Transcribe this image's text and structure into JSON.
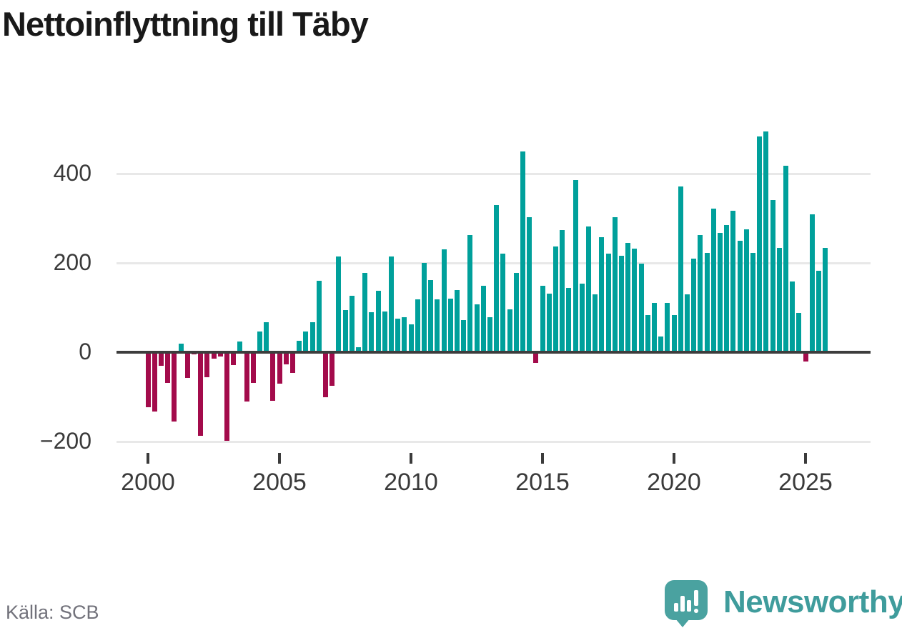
{
  "title": "Nettoinflyttning till Täby",
  "source": {
    "label": "Källa: SCB"
  },
  "brand": {
    "name": "Newsworthy",
    "badge_color": "#4aa2a0",
    "wordmark_color": "#3f9c9c",
    "icon": "bar-chart-exclamation-speech-bubble"
  },
  "chart_data": {
    "type": "bar",
    "title": "Nettoinflyttning till Täby",
    "xlabel": "",
    "ylabel": "",
    "ylim": [
      -230,
      520
    ],
    "grid": "horizontal",
    "legend_position": "none",
    "positive_color": "#00a09b",
    "negative_color": "#a30b4b",
    "yticks": [
      400,
      200,
      0,
      -200
    ],
    "xticks": [
      "2000",
      "2005",
      "2010",
      "2015",
      "2020",
      "2025"
    ],
    "x": [
      "2000Q1",
      "2000Q2",
      "2000Q3",
      "2000Q4",
      "2001Q1",
      "2001Q2",
      "2001Q3",
      "2001Q4",
      "2002Q1",
      "2002Q2",
      "2002Q3",
      "2002Q4",
      "2003Q1",
      "2003Q2",
      "2003Q3",
      "2003Q4",
      "2004Q1",
      "2004Q2",
      "2004Q3",
      "2004Q4",
      "2005Q1",
      "2005Q2",
      "2005Q3",
      "2005Q4",
      "2006Q1",
      "2006Q2",
      "2006Q3",
      "2006Q4",
      "2007Q1",
      "2007Q2",
      "2007Q3",
      "2007Q4",
      "2008Q1",
      "2008Q2",
      "2008Q3",
      "2008Q4",
      "2009Q1",
      "2009Q2",
      "2009Q3",
      "2009Q4",
      "2010Q1",
      "2010Q2",
      "2010Q3",
      "2010Q4",
      "2011Q1",
      "2011Q2",
      "2011Q3",
      "2011Q4",
      "2012Q1",
      "2012Q2",
      "2012Q3",
      "2012Q4",
      "2013Q1",
      "2013Q2",
      "2013Q3",
      "2013Q4",
      "2014Q1",
      "2014Q2",
      "2014Q3",
      "2014Q4",
      "2015Q1",
      "2015Q2",
      "2015Q3",
      "2015Q4",
      "2016Q1",
      "2016Q2",
      "2016Q3",
      "2016Q4",
      "2017Q1",
      "2017Q2",
      "2017Q3",
      "2017Q4",
      "2018Q1",
      "2018Q2",
      "2018Q3",
      "2018Q4",
      "2019Q1",
      "2019Q2",
      "2019Q3",
      "2019Q4",
      "2020Q1",
      "2020Q2",
      "2020Q3",
      "2020Q4",
      "2021Q1",
      "2021Q2",
      "2021Q3",
      "2021Q4",
      "2022Q1",
      "2022Q2",
      "2022Q3",
      "2022Q4",
      "2023Q1",
      "2023Q2",
      "2023Q3",
      "2023Q4",
      "2024Q1",
      "2024Q2",
      "2024Q3",
      "2024Q4",
      "2025Q1",
      "2025Q2",
      "2025Q3",
      "2025Q4"
    ],
    "values": [
      -123,
      -133,
      -30,
      -69,
      -155,
      19,
      -58,
      -4,
      -187,
      -56,
      -15,
      -10,
      -199,
      -29,
      24,
      -111,
      -69,
      46,
      68,
      -108,
      -70,
      -27,
      -46,
      25,
      46,
      68,
      160,
      -101,
      -75,
      215,
      94,
      126,
      11,
      178,
      90,
      138,
      92,
      215,
      76,
      79,
      63,
      119,
      200,
      161,
      119,
      230,
      120,
      140,
      72,
      263,
      107,
      149,
      78,
      330,
      221,
      96,
      178,
      449,
      303,
      -24,
      149,
      131,
      237,
      274,
      144,
      385,
      153,
      282,
      130,
      258,
      221,
      302,
      216,
      245,
      232,
      198,
      83,
      111,
      35,
      110,
      83,
      371,
      130,
      210,
      262,
      223,
      322,
      267,
      285,
      317,
      249,
      275,
      223,
      484,
      495,
      341,
      234,
      417,
      159,
      88,
      -21,
      309,
      183,
      234
    ]
  }
}
